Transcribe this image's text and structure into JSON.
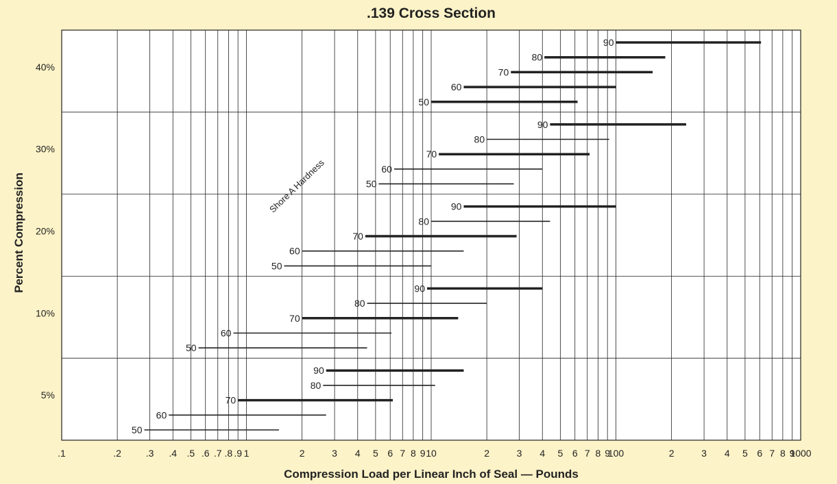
{
  "chart_data": {
    "type": "line",
    "title": ".139 Cross Section",
    "xlabel": "Compression Load per Linear Inch of Seal  —  Pounds",
    "ylabel": "Percent Compression",
    "x_scale": "log",
    "xlim": [
      0.1,
      1000
    ],
    "grid": true,
    "x_tick_labels": [
      ".1",
      ".2",
      ".3",
      ".4",
      ".5",
      ".6",
      ".7",
      ".8",
      ".9",
      "1",
      "2",
      "3",
      "4",
      "5",
      "6",
      "7",
      "8",
      "9",
      "10",
      "2",
      "3",
      "4",
      "5",
      "6",
      "7",
      "8",
      "9",
      "100",
      "2",
      "3",
      "4",
      "5",
      "6",
      "7",
      "8",
      "9",
      "1000"
    ],
    "y_categories": [
      "5%",
      "10%",
      "20%",
      "30%",
      "40%"
    ],
    "annotation": "Shore A Hardness",
    "groups": [
      {
        "compression": "5%",
        "bars": [
          {
            "hardness": "50",
            "x": [
              0.28,
              1.5
            ]
          },
          {
            "hardness": "60",
            "x": [
              0.38,
              2.7
            ]
          },
          {
            "hardness": "70",
            "x": [
              0.9,
              6.2
            ]
          },
          {
            "hardness": "80",
            "x": [
              2.6,
              10.5
            ]
          },
          {
            "hardness": "90",
            "x": [
              2.7,
              15
            ]
          }
        ]
      },
      {
        "compression": "10%",
        "bars": [
          {
            "hardness": "50",
            "x": [
              0.55,
              4.5
            ]
          },
          {
            "hardness": "60",
            "x": [
              0.85,
              6.1
            ]
          },
          {
            "hardness": "70",
            "x": [
              2.0,
              14
            ]
          },
          {
            "hardness": "80",
            "x": [
              4.5,
              20
            ]
          },
          {
            "hardness": "90",
            "x": [
              9.5,
              40
            ]
          }
        ]
      },
      {
        "compression": "20%",
        "bars": [
          {
            "hardness": "50",
            "x": [
              1.6,
              10
            ]
          },
          {
            "hardness": "60",
            "x": [
              2.0,
              15
            ]
          },
          {
            "hardness": "70",
            "x": [
              4.4,
              29
            ]
          },
          {
            "hardness": "80",
            "x": [
              10,
              44
            ]
          },
          {
            "hardness": "90",
            "x": [
              15,
              100
            ]
          }
        ]
      },
      {
        "compression": "30%",
        "bars": [
          {
            "hardness": "50",
            "x": [
              5.2,
              28
            ]
          },
          {
            "hardness": "60",
            "x": [
              6.3,
              40
            ]
          },
          {
            "hardness": "70",
            "x": [
              11,
              72
            ]
          },
          {
            "hardness": "80",
            "x": [
              20,
              92
            ]
          },
          {
            "hardness": "90",
            "x": [
              44,
              240
            ]
          }
        ]
      },
      {
        "compression": "40%",
        "bars": [
          {
            "hardness": "50",
            "x": [
              10,
              62
            ]
          },
          {
            "hardness": "60",
            "x": [
              15,
              100
            ]
          },
          {
            "hardness": "70",
            "x": [
              27,
              158
            ]
          },
          {
            "hardness": "80",
            "x": [
              41,
              185
            ]
          },
          {
            "hardness": "90",
            "x": [
              100,
              610
            ]
          }
        ]
      }
    ]
  }
}
